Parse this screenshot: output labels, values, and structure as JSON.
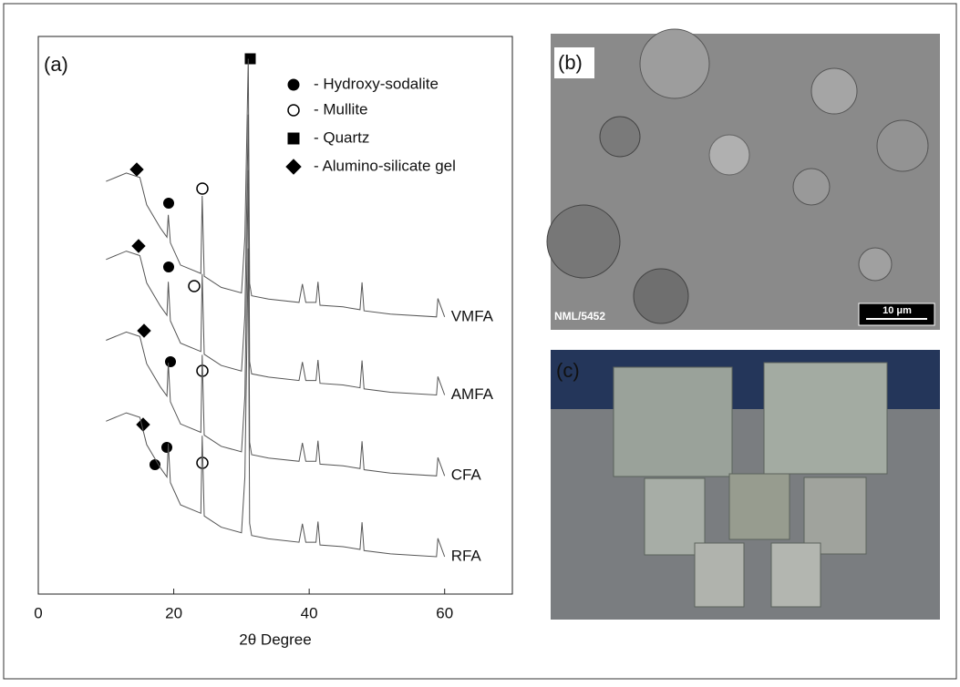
{
  "chart_data": {
    "type": "line",
    "panel_label": "(a)",
    "x_label": "2θ Degree",
    "xlim": [
      0,
      70
    ],
    "xticks": [
      0,
      20,
      40,
      60
    ],
    "ylim": [
      0,
      100
    ],
    "x": [
      10,
      13,
      15,
      16,
      18,
      19,
      19.2,
      19.5,
      21,
      24,
      24.2,
      24.5,
      27,
      30,
      30.5,
      31,
      31.2,
      31.5,
      34,
      38.5,
      39,
      39.5,
      41,
      41.3,
      41.6,
      45,
      47.5,
      47.8,
      48.1,
      52,
      58.8,
      59,
      60
    ],
    "series": [
      {
        "name": "VMFA",
        "color": "#555555",
        "values": [
          74,
          75.5,
          74.7,
          69.8,
          65.7,
          64,
          68,
          63,
          59,
          57.5,
          71.4,
          57,
          55,
          54,
          64,
          96,
          55.7,
          53.5,
          52.9,
          52.3,
          55.6,
          52.3,
          52.3,
          56,
          51.8,
          51.5,
          51,
          55.9,
          50.8,
          50.2,
          49.7,
          53,
          49.7
        ]
      },
      {
        "name": "AMFA",
        "color": "#555555",
        "values": [
          60,
          61.5,
          60.7,
          55.8,
          51.7,
          50,
          56,
          49,
          45,
          43.5,
          57.4,
          43,
          41,
          40,
          50,
          86,
          41.7,
          39.5,
          38.9,
          38.3,
          41.6,
          38.3,
          38.3,
          42,
          37.8,
          37.5,
          37,
          41.9,
          36.8,
          36.2,
          35.7,
          39,
          35.7
        ]
      },
      {
        "name": "CFA",
        "color": "#555555",
        "values": [
          45.5,
          47,
          46.2,
          41.3,
          37.2,
          35.5,
          41.5,
          34.5,
          30.5,
          29,
          42.9,
          28.5,
          26.5,
          25.5,
          35.5,
          76,
          27.2,
          25,
          24.4,
          23.8,
          27.1,
          23.8,
          23.8,
          27.5,
          23.3,
          23,
          22.5,
          27.4,
          22.3,
          21.7,
          21.2,
          24.5,
          21.2
        ]
      },
      {
        "name": "RFA",
        "color": "#555555",
        "values": [
          31,
          32.5,
          31.7,
          26.8,
          22.7,
          21,
          27,
          20,
          16,
          14.5,
          28.4,
          14,
          12,
          11,
          21,
          62,
          12.7,
          10.5,
          9.9,
          9.3,
          12.6,
          9.3,
          9.3,
          13,
          8.8,
          8.5,
          8,
          12.9,
          7.8,
          7.2,
          6.7,
          10,
          6.7
        ]
      }
    ],
    "phase_legend": [
      "- Hydroxy-sodalite",
      "- Mullite",
      "- Quartz",
      "- Alumino-silicate gel"
    ]
  },
  "panel_b": {
    "label": "(b)",
    "code": "NML/5452",
    "scale_bar": "10 μm"
  },
  "panel_c": {
    "label": "(c)"
  }
}
